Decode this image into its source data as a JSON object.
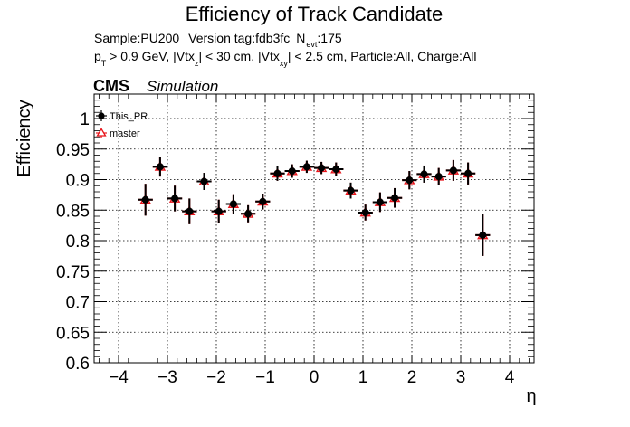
{
  "chart_data": {
    "type": "scatter",
    "title": "Efficiency of Track Candidate",
    "info_line1": {
      "sample": "Sample:PU200",
      "version": "Version tag:fdb3fc",
      "nevt_label": "N",
      "nevt_sub": "evt",
      "nevt_value": ":175"
    },
    "info_line2": {
      "p": "p",
      "p_sub": "T",
      "s1": " > 0.9 GeV, |Vtx",
      "s1_sub": "z",
      "s2": "| < 30 cm, |Vtx",
      "s2_sub": "xy",
      "s3": "| < 2.5 cm, Particle:All, Charge:All"
    },
    "cms_label": "CMS",
    "simulation_label": "Simulation",
    "xlabel": "η",
    "ylabel": "Efficiency",
    "xlim": [
      -4.5,
      4.5
    ],
    "ylim": [
      0.6,
      1.04
    ],
    "xticks": [
      -4,
      -3,
      -2,
      -1,
      0,
      1,
      2,
      3,
      4
    ],
    "xtick_labels": [
      "−4",
      "−3",
      "−2",
      "−1",
      "0",
      "1",
      "2",
      "3",
      "4"
    ],
    "yticks": [
      0.6,
      0.65,
      0.7,
      0.75,
      0.8,
      0.85,
      0.9,
      0.95,
      1.0
    ],
    "ytick_labels": [
      "0.6",
      "0.65",
      "0.7",
      "0.75",
      "0.8",
      "0.85",
      "0.9",
      "0.95",
      "1"
    ],
    "grid": true,
    "legend_position": "top-left",
    "x_halfwidth": 0.15,
    "series": [
      {
        "name": "This_PR",
        "color": "#000000",
        "marker": "filled-circle",
        "x": [
          -3.45,
          -3.15,
          -2.85,
          -2.55,
          -2.25,
          -1.95,
          -1.65,
          -1.35,
          -1.05,
          -0.75,
          -0.45,
          -0.15,
          0.15,
          0.45,
          0.75,
          1.05,
          1.35,
          1.65,
          1.95,
          2.25,
          2.55,
          2.85,
          3.15,
          3.45
        ],
        "y": [
          0.867,
          0.921,
          0.869,
          0.848,
          0.897,
          0.848,
          0.86,
          0.844,
          0.864,
          0.91,
          0.914,
          0.921,
          0.919,
          0.917,
          0.882,
          0.846,
          0.863,
          0.87,
          0.899,
          0.909,
          0.905,
          0.915,
          0.91,
          0.809
        ],
        "yerr": [
          0.026,
          0.016,
          0.021,
          0.021,
          0.014,
          0.019,
          0.016,
          0.014,
          0.013,
          0.012,
          0.011,
          0.01,
          0.01,
          0.011,
          0.013,
          0.013,
          0.016,
          0.016,
          0.015,
          0.014,
          0.014,
          0.017,
          0.018,
          0.034
        ]
      },
      {
        "name": "master",
        "color": "#e8151b",
        "marker": "open-triangle",
        "x": [
          -3.45,
          -3.15,
          -2.85,
          -2.55,
          -2.25,
          -1.95,
          -1.65,
          -1.35,
          -1.05,
          -0.75,
          -0.45,
          -0.15,
          0.15,
          0.45,
          0.75,
          1.05,
          1.35,
          1.65,
          1.95,
          2.25,
          2.55,
          2.85,
          3.15,
          3.45
        ],
        "y": [
          0.867,
          0.921,
          0.869,
          0.848,
          0.897,
          0.848,
          0.86,
          0.844,
          0.864,
          0.91,
          0.914,
          0.921,
          0.919,
          0.917,
          0.882,
          0.846,
          0.863,
          0.87,
          0.899,
          0.909,
          0.905,
          0.915,
          0.91,
          0.809
        ],
        "yerr": [
          0.026,
          0.016,
          0.021,
          0.021,
          0.014,
          0.019,
          0.016,
          0.014,
          0.013,
          0.012,
          0.011,
          0.01,
          0.01,
          0.011,
          0.013,
          0.013,
          0.016,
          0.016,
          0.015,
          0.014,
          0.014,
          0.017,
          0.018,
          0.034
        ]
      }
    ]
  }
}
